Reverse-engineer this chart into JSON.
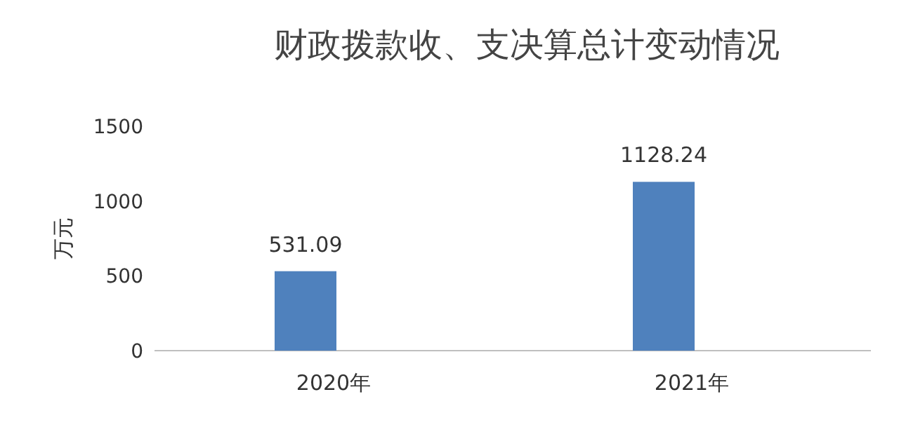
{
  "chart_data": {
    "type": "bar",
    "title": "财政拨款收、支决算总计变动情况",
    "ylabel": "万元",
    "categories": [
      "2020年",
      "2021年"
    ],
    "values": [
      531.09,
      1128.24
    ],
    "color": "#4f81bd",
    "ylim": [
      0,
      1500
    ],
    "yticks": [
      0,
      500,
      1000,
      1500
    ],
    "data_labels": true
  }
}
